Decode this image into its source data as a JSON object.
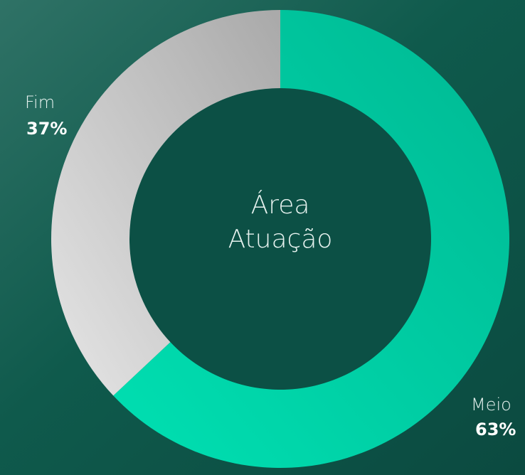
{
  "chart_data": {
    "type": "donut",
    "center_text": [
      "Área",
      "Atuação"
    ],
    "categories": [
      "Meio",
      "Fim"
    ],
    "values": [
      63,
      37
    ],
    "value_labels": [
      "63%",
      "37%"
    ],
    "colors": [
      "#00d6a9",
      "#cfcfcf"
    ]
  }
}
